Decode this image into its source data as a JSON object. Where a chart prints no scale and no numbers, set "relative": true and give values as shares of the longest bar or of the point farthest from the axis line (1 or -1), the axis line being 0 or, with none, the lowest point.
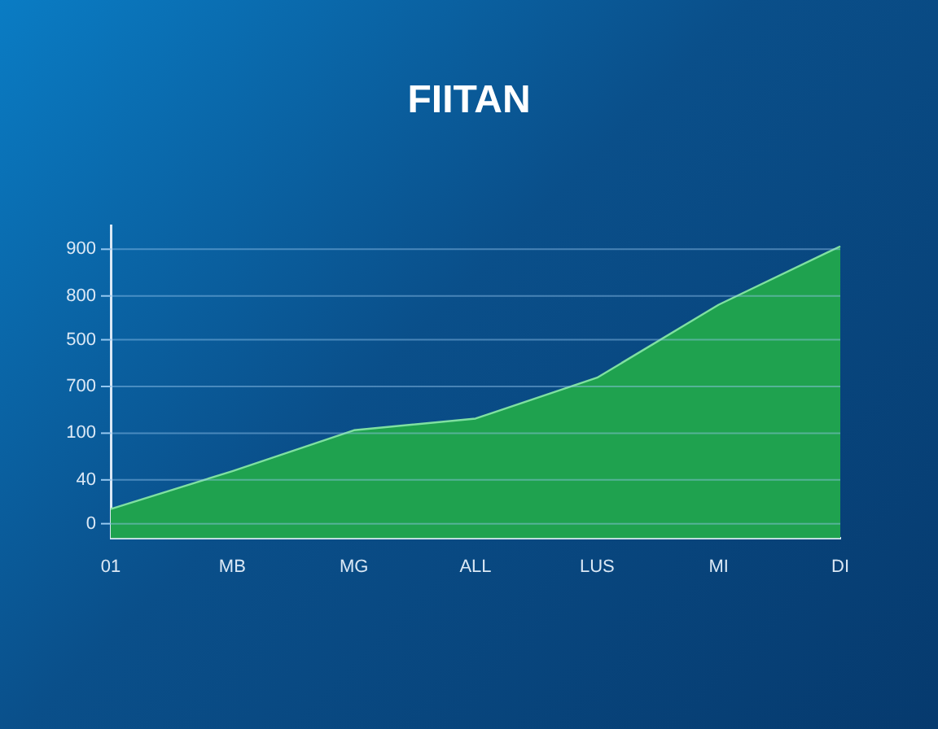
{
  "chart_data": {
    "type": "area",
    "title": "FIITAN",
    "relative": true,
    "categories": [
      "01",
      "MB",
      "MG",
      "ALL",
      "LUS",
      "MI",
      "DI"
    ],
    "values": [
      0.1,
      0.23,
      0.37,
      0.41,
      0.55,
      0.8,
      1
    ],
    "color": "#1fa24f",
    "annotations": [
      "900",
      "800",
      "500",
      "700",
      "100",
      "40",
      "0"
    ],
    "ref_lines": [
      {
        "axis": "y",
        "value": 0.99,
        "color": "#96c8f0"
      },
      {
        "axis": "y",
        "value": 0.83,
        "color": "#96c8f0"
      },
      {
        "axis": "y",
        "value": 0.68,
        "color": "#96c8f0"
      },
      {
        "axis": "y",
        "value": 0.52,
        "color": "#96c8f0"
      },
      {
        "axis": "y",
        "value": 0.36,
        "color": "#96c8f0"
      },
      {
        "axis": "y",
        "value": 0.2,
        "color": "#96c8f0"
      },
      {
        "axis": "y",
        "value": 0.05,
        "color": "#96c8f0"
      }
    ]
  }
}
